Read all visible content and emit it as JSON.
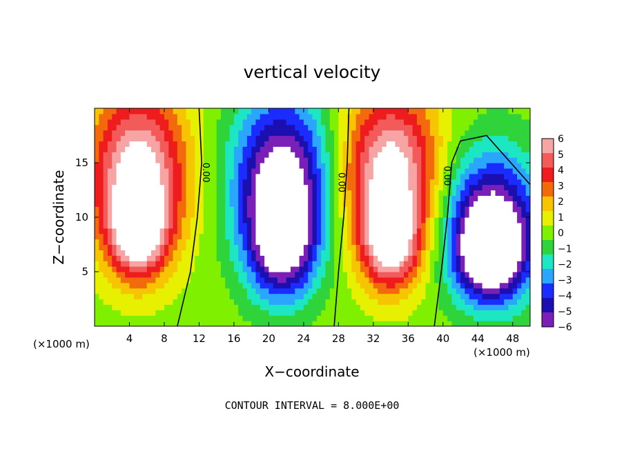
{
  "chart_data": {
    "type": "heatmap",
    "title": "vertical velocity",
    "xlabel": "X−coordinate",
    "ylabel": "Z−coordinate",
    "x_unit": "(×1000 m)",
    "x_unit_right": "(×1000 m)",
    "xlim": [
      0,
      50
    ],
    "ylim": [
      0,
      20
    ],
    "x_ticks": [
      4,
      8,
      12,
      16,
      20,
      24,
      28,
      32,
      36,
      40,
      44,
      48
    ],
    "y_ticks": [
      5,
      10,
      15
    ],
    "colorbar": {
      "levels": [
        6,
        5,
        4,
        3,
        2,
        1,
        0,
        -1,
        -2,
        -3,
        -4,
        -5,
        -6
      ],
      "labels": [
        "6",
        "5",
        "4",
        "3",
        "2",
        "1",
        "0",
        "−1",
        "−2",
        "−3",
        "−4",
        "−5",
        "−6"
      ],
      "colors": [
        "#f7a4a4",
        "#f35b5b",
        "#ee1c1c",
        "#f36a0c",
        "#f6c400",
        "#e6f000",
        "#7ef000",
        "#2fd43a",
        "#1de6c2",
        "#2aa6ff",
        "#1a2cff",
        "#1c0fb0",
        "#7a1fb8"
      ]
    },
    "contour_labels": [
      {
        "text": "0.00",
        "x": 12.7,
        "y": 14.1
      },
      {
        "text": "0.00",
        "x": 28.3,
        "y": 13.2
      },
      {
        "text": "0.00",
        "x": 40.4,
        "y": 13.8
      }
    ],
    "cells": [
      {
        "x": 5.0,
        "z": 14.0,
        "rx": 5.5,
        "rz": 7.5,
        "w": 7.5
      },
      {
        "x": 5.0,
        "z": 8.5,
        "rx": 3.2,
        "rz": 4.0,
        "w": 6.0
      },
      {
        "x": 21.5,
        "z": 13.5,
        "rx": 5.5,
        "rz": 7.5,
        "w": -7.5
      },
      {
        "x": 21.5,
        "z": 7.5,
        "rx": 3.8,
        "rz": 5.0,
        "w": -6.0
      },
      {
        "x": 34.0,
        "z": 14.0,
        "rx": 5.5,
        "rz": 7.5,
        "w": 7.5
      },
      {
        "x": 34.0,
        "z": 7.5,
        "rx": 3.2,
        "rz": 4.0,
        "w": 6.0
      },
      {
        "x": 45.5,
        "z": 9.5,
        "rx": 5.5,
        "rz": 6.5,
        "w": -7.0
      },
      {
        "x": 45.5,
        "z": 6.5,
        "rx": 3.8,
        "rz": 4.0,
        "w": -6.0
      }
    ],
    "footnote": "CONTOUR INTERVAL = 8.000E+00"
  }
}
